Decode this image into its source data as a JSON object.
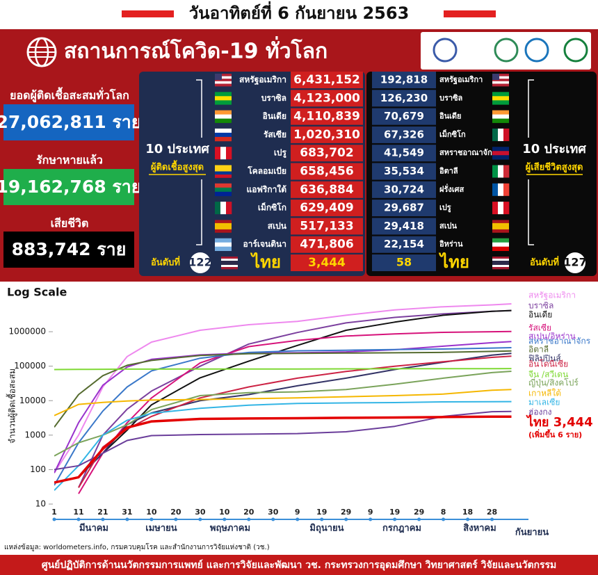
{
  "header": {
    "date": "วันอาทิตย์ที่ 6 กันยายน 2563",
    "title": "สถานการณ์โควิด-19 ทั่วโลก"
  },
  "world": [
    {
      "label": "ยอดผู้ติดเชื้อสะสมทั่วโลก",
      "value": "27,062,811 ราย"
    },
    {
      "label": "รักษาหายแล้ว",
      "value": "19,162,768 ราย"
    },
    {
      "label": "เสียชีวิต",
      "value": "883,742 ราย"
    }
  ],
  "infected": {
    "heading": "10 ประเทศ",
    "subheading": "ผู้ติดเชื้อสูงสุด",
    "rows": [
      {
        "country": "สหรัฐอเมริกา",
        "value": "6,431,152"
      },
      {
        "country": "บราซิล",
        "value": "4,123,000"
      },
      {
        "country": "อินเดีย",
        "value": "4,110,839"
      },
      {
        "country": "รัสเซีย",
        "value": "1,020,310"
      },
      {
        "country": "เปรู",
        "value": "683,702"
      },
      {
        "country": "โคลอมเบีย",
        "value": "658,456"
      },
      {
        "country": "แอฟริกาใต้",
        "value": "636,884"
      },
      {
        "country": "เม็กซิโก",
        "value": "629,409"
      },
      {
        "country": "สเปน",
        "value": "517,133"
      },
      {
        "country": "อาร์เจนตินา",
        "value": "471,806"
      }
    ],
    "rank_label": "อันดับที่",
    "rank": 122,
    "thai": "ไทย",
    "thai_value": "3,444"
  },
  "deaths": {
    "heading": "10 ประเทศ",
    "subheading": "ผู้เสียชีวิตสูงสุด",
    "rows": [
      {
        "country": "สหรัฐอเมริกา",
        "value": "192,818"
      },
      {
        "country": "บราซิล",
        "value": "126,230"
      },
      {
        "country": "อินเดีย",
        "value": "70,679"
      },
      {
        "country": "เม็กซิโก",
        "value": "67,326"
      },
      {
        "country": "สหราชอาณาจักร",
        "value": "41,549"
      },
      {
        "country": "อิตาลี",
        "value": "35,534"
      },
      {
        "country": "ฝรั่งเศส",
        "value": "30,724"
      },
      {
        "country": "เปรู",
        "value": "29,687"
      },
      {
        "country": "สเปน",
        "value": "29,418"
      },
      {
        "country": "อิหร่าน",
        "value": "22,154"
      }
    ],
    "rank_label": "อันดับที่",
    "rank": 127,
    "thai": "ไทย",
    "thai_value": 58
  },
  "chart_data": {
    "type": "line",
    "title": "Log Scale",
    "y_label": "จำนวนผู้ติดเชื้อสะสม",
    "log_scale": true,
    "x": [
      1,
      11,
      21,
      31,
      41,
      61,
      81,
      101,
      121,
      141,
      161,
      181,
      189
    ],
    "xlim": [
      1,
      196
    ],
    "xticks": [
      1,
      11,
      21,
      31,
      {
        "value": 41,
        "label": "10"
      },
      {
        "value": 51,
        "label": "20"
      },
      {
        "value": 61,
        "label": "30"
      },
      {
        "value": 71,
        "label": "10"
      },
      {
        "value": 81,
        "label": "20"
      },
      {
        "value": 91,
        "label": "30"
      },
      {
        "value": 101,
        "label": "9"
      },
      {
        "value": 111,
        "label": "19"
      },
      {
        "value": 121,
        "label": "29"
      },
      {
        "value": 131,
        "label": "9"
      },
      {
        "value": 141,
        "label": "19"
      },
      {
        "value": 151,
        "label": "29"
      },
      {
        "value": 161,
        "label": "8"
      },
      {
        "value": 171,
        "label": "18"
      },
      {
        "value": 181,
        "label": "28"
      }
    ],
    "months": [
      "มีนาคม",
      "เมษายน",
      "พฤษภาคม",
      "มิถุนายน",
      "กรกฎาคม",
      "สิงหาคม",
      "กันยายน"
    ],
    "ylim": [
      6,
      8500000
    ],
    "yticks": [
      10,
      100,
      1000,
      10000,
      100000,
      1000000
    ],
    "series": [
      {
        "name": "สหรัฐอเมริกา",
        "color": "#ee88ee",
        "values": [
          80,
          1000,
          25000,
          190000,
          500000,
          1100000,
          1600000,
          2000000,
          3000000,
          4300000,
          5300000,
          6000000,
          6431152
        ]
      },
      {
        "name": "บราซิล",
        "color": "#7b3f9e",
        "values": [
          null,
          30,
          1000,
          5700,
          19000,
          100000,
          440000,
          950000,
          1800000,
          2600000,
          3300000,
          3900000,
          4123000
        ]
      },
      {
        "name": "อินเดีย",
        "color": "#111111",
        "values": [
          null,
          60,
          300,
          1400,
          7600,
          46000,
          140000,
          400000,
          1100000,
          1900000,
          3000000,
          3900000,
          4110839
        ]
      },
      {
        "name": "รัสเซีย",
        "color": "#d6127a",
        "values": [
          null,
          20,
          300,
          2300,
          12000,
          125000,
          370000,
          560000,
          750000,
          860000,
          960000,
          1000000,
          1020310
        ]
      },
      {
        "name": "สเปน/อิหร่าน",
        "color": "#9932cc",
        "values": [
          80,
          2300,
          28000,
          95000,
          158000,
          213000,
          240000,
          245000,
          260000,
          300000,
          380000,
          480000,
          517133
        ]
      },
      {
        "name": "สหราชอาณาจักร",
        "color": "#3a78c9",
        "values": [
          35,
          600,
          5000,
          25000,
          73000,
          170000,
          250000,
          280000,
          290000,
          305000,
          315000,
          335000,
          345000
        ]
      },
      {
        "name": "อิตาลี",
        "color": "#556b2f",
        "values": [
          1700,
          15000,
          53000,
          106000,
          147000,
          205000,
          230000,
          235000,
          240000,
          245000,
          252000,
          268000,
          277000
        ]
      },
      {
        "name": "ฟิลิปปินส์",
        "color": "#333366",
        "values": [
          null,
          60,
          300,
          2000,
          4400,
          10000,
          15000,
          27000,
          45000,
          80000,
          130000,
          210000,
          235000
        ]
      },
      {
        "name": "อินโดนีเซีย",
        "color": "#cc2244",
        "values": [
          null,
          30,
          450,
          1500,
          3500,
          12000,
          25000,
          45000,
          70000,
          100000,
          135000,
          180000,
          195000
        ]
      },
      {
        "name": "จีน /สวีเดน",
        "color": "#7fd934",
        "values": [
          80000,
          80800,
          81300,
          82000,
          82000,
          82900,
          82900,
          83000,
          83500,
          84000,
          84600,
          85000,
          85100
        ]
      },
      {
        "name": "ญี่ปุ่น/สิงคโปร์",
        "color": "#7aa35a",
        "values": [
          250,
          600,
          1000,
          2000,
          5500,
          14000,
          17000,
          18000,
          21000,
          30000,
          45000,
          65000,
          71000
        ]
      },
      {
        "name": "เกาหลีใต้",
        "color": "#f5b700",
        "values": [
          3700,
          7800,
          8900,
          9800,
          10400,
          10800,
          11400,
          12000,
          13000,
          14000,
          15500,
          20000,
          21000
        ]
      },
      {
        "name": "มาเลเซีย",
        "color": "#33b5e5",
        "values": [
          25,
          130,
          1000,
          2700,
          4300,
          6000,
          7400,
          8300,
          8600,
          8800,
          9200,
          9300,
          9400
        ]
      },
      {
        "name": "ฮ่องกง",
        "color": "#6a3d9a",
        "values": [
          100,
          130,
          300,
          700,
          970,
          1040,
          1070,
          1110,
          1250,
          1800,
          3500,
          4800,
          4870
        ]
      },
      {
        "name": "ไทย 3,444",
        "color": "#e30000",
        "values": [
          42,
          60,
          400,
          1650,
          2500,
          2950,
          3040,
          3100,
          3180,
          3250,
          3350,
          3430,
          3444
        ]
      }
    ],
    "annotation": "(เพิ่มขึ้น 6 ราย)"
  },
  "footer": {
    "source": "แหล่งข้อมูล: worldometers.info, กรมควบคุมโรค และสำนักงานการวิจัยแห่งชาติ (วช.)",
    "org": "ศูนย์ปฏิบัติการด้านนวัตกรรมการแพทย์ และการวิจัยและพัฒนา วช.   กระทรวงการอุดมศึกษา วิทยาศาสตร์ วิจัยและนวัตกรรม"
  }
}
